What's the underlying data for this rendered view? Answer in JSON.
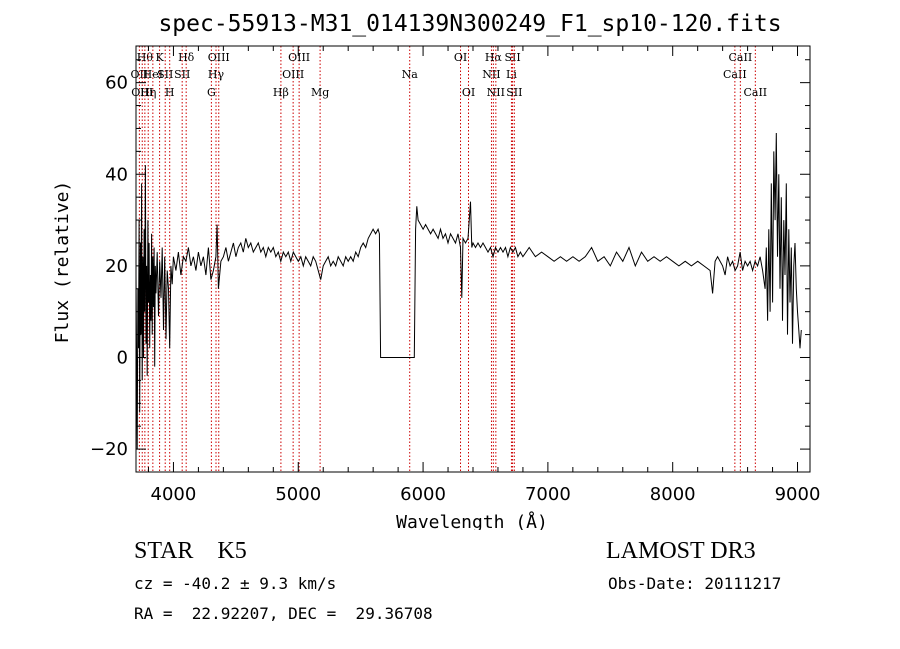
{
  "chart_data": {
    "type": "line",
    "title": "spec-55913-M31_014139N300249_F1_sp10-120.fits",
    "xlabel": "Wavelength (Å)",
    "ylabel": "Flux (relative)",
    "xlim": [
      3700,
      9100
    ],
    "ylim": [
      -25,
      68
    ],
    "x_ticks": [
      4000,
      5000,
      6000,
      7000,
      8000,
      9000
    ],
    "y_ticks": [
      -20,
      0,
      20,
      40,
      60
    ],
    "line_color": "#000000",
    "marker_color": "#cc0000",
    "spectrum": {
      "name": "",
      "points": [
        [
          3700,
          18
        ],
        [
          3710,
          -20
        ],
        [
          3715,
          15
        ],
        [
          3720,
          2
        ],
        [
          3725,
          30
        ],
        [
          3730,
          -12
        ],
        [
          3735,
          25
        ],
        [
          3740,
          5
        ],
        [
          3745,
          38
        ],
        [
          3750,
          -5
        ],
        [
          3755,
          22
        ],
        [
          3760,
          0
        ],
        [
          3765,
          28
        ],
        [
          3770,
          10
        ],
        [
          3775,
          42
        ],
        [
          3780,
          3
        ],
        [
          3785,
          20
        ],
        [
          3790,
          -4
        ],
        [
          3795,
          30
        ],
        [
          3800,
          12
        ],
        [
          3805,
          25
        ],
        [
          3810,
          2
        ],
        [
          3815,
          18
        ],
        [
          3820,
          8
        ],
        [
          3825,
          27
        ],
        [
          3830,
          5
        ],
        [
          3835,
          22
        ],
        [
          3840,
          11
        ],
        [
          3845,
          24
        ],
        [
          3850,
          -2
        ],
        [
          3855,
          20
        ],
        [
          3860,
          14
        ],
        [
          3870,
          23
        ],
        [
          3880,
          9
        ],
        [
          3890,
          21
        ],
        [
          3900,
          13
        ],
        [
          3910,
          24
        ],
        [
          3920,
          6
        ],
        [
          3930,
          22
        ],
        [
          3940,
          4
        ],
        [
          3950,
          19
        ],
        [
          3960,
          15
        ],
        [
          3970,
          2
        ],
        [
          3980,
          20
        ],
        [
          3990,
          16
        ],
        [
          4000,
          22
        ],
        [
          4020,
          19
        ],
        [
          4040,
          23
        ],
        [
          4060,
          18
        ],
        [
          4080,
          22
        ],
        [
          4100,
          21
        ],
        [
          4120,
          24
        ],
        [
          4140,
          20
        ],
        [
          4160,
          22
        ],
        [
          4180,
          19
        ],
        [
          4200,
          23
        ],
        [
          4220,
          20
        ],
        [
          4240,
          22
        ],
        [
          4260,
          18
        ],
        [
          4280,
          24
        ],
        [
          4300,
          17
        ],
        [
          4320,
          19
        ],
        [
          4340,
          22
        ],
        [
          4350,
          29
        ],
        [
          4360,
          15
        ],
        [
          4380,
          21
        ],
        [
          4400,
          22
        ],
        [
          4420,
          24
        ],
        [
          4440,
          21
        ],
        [
          4460,
          23
        ],
        [
          4480,
          25
        ],
        [
          4500,
          22
        ],
        [
          4520,
          24
        ],
        [
          4540,
          25
        ],
        [
          4560,
          23
        ],
        [
          4580,
          26
        ],
        [
          4600,
          24
        ],
        [
          4620,
          25
        ],
        [
          4640,
          23
        ],
        [
          4660,
          24
        ],
        [
          4680,
          25
        ],
        [
          4700,
          23
        ],
        [
          4720,
          24
        ],
        [
          4740,
          22
        ],
        [
          4760,
          24
        ],
        [
          4780,
          23
        ],
        [
          4800,
          24
        ],
        [
          4820,
          22
        ],
        [
          4840,
          23
        ],
        [
          4860,
          21
        ],
        [
          4880,
          23
        ],
        [
          4900,
          22
        ],
        [
          4920,
          23
        ],
        [
          4940,
          21
        ],
        [
          4960,
          23
        ],
        [
          4980,
          22
        ],
        [
          5000,
          21
        ],
        [
          5020,
          22
        ],
        [
          5040,
          20
        ],
        [
          5060,
          22
        ],
        [
          5080,
          21
        ],
        [
          5100,
          20
        ],
        [
          5120,
          22
        ],
        [
          5140,
          21
        ],
        [
          5160,
          19
        ],
        [
          5180,
          17
        ],
        [
          5200,
          20
        ],
        [
          5220,
          21
        ],
        [
          5240,
          22
        ],
        [
          5260,
          20
        ],
        [
          5280,
          21
        ],
        [
          5300,
          20
        ],
        [
          5320,
          22
        ],
        [
          5340,
          21
        ],
        [
          5360,
          20
        ],
        [
          5380,
          22
        ],
        [
          5400,
          21
        ],
        [
          5420,
          22
        ],
        [
          5440,
          21
        ],
        [
          5460,
          23
        ],
        [
          5480,
          22
        ],
        [
          5500,
          24
        ],
        [
          5520,
          25
        ],
        [
          5540,
          24
        ],
        [
          5560,
          26
        ],
        [
          5580,
          27
        ],
        [
          5600,
          28
        ],
        [
          5620,
          27
        ],
        [
          5640,
          28
        ],
        [
          5650,
          27
        ],
        [
          5660,
          0
        ],
        [
          5700,
          0
        ],
        [
          5800,
          0
        ],
        [
          5900,
          0
        ],
        [
          5930,
          0
        ],
        [
          5940,
          28
        ],
        [
          5950,
          33
        ],
        [
          5960,
          30
        ],
        [
          5980,
          29
        ],
        [
          6000,
          28
        ],
        [
          6020,
          29
        ],
        [
          6040,
          28
        ],
        [
          6060,
          27
        ],
        [
          6080,
          28
        ],
        [
          6100,
          27
        ],
        [
          6120,
          26
        ],
        [
          6140,
          28
        ],
        [
          6160,
          26
        ],
        [
          6180,
          27
        ],
        [
          6200,
          25
        ],
        [
          6220,
          27
        ],
        [
          6240,
          26
        ],
        [
          6260,
          25
        ],
        [
          6280,
          27
        ],
        [
          6300,
          24
        ],
        [
          6310,
          13
        ],
        [
          6320,
          26
        ],
        [
          6340,
          25
        ],
        [
          6360,
          26
        ],
        [
          6380,
          34
        ],
        [
          6390,
          24
        ],
        [
          6400,
          25
        ],
        [
          6420,
          24
        ],
        [
          6440,
          25
        ],
        [
          6460,
          24
        ],
        [
          6480,
          25
        ],
        [
          6500,
          24
        ],
        [
          6520,
          23
        ],
        [
          6540,
          24
        ],
        [
          6560,
          22
        ],
        [
          6580,
          24
        ],
        [
          6600,
          23
        ],
        [
          6620,
          24
        ],
        [
          6640,
          23
        ],
        [
          6660,
          24
        ],
        [
          6680,
          22
        ],
        [
          6700,
          24
        ],
        [
          6720,
          23
        ],
        [
          6740,
          24
        ],
        [
          6760,
          22
        ],
        [
          6780,
          23
        ],
        [
          6800,
          22
        ],
        [
          6850,
          24
        ],
        [
          6900,
          22
        ],
        [
          6950,
          23
        ],
        [
          7000,
          22
        ],
        [
          7050,
          21
        ],
        [
          7100,
          22
        ],
        [
          7150,
          21
        ],
        [
          7200,
          22
        ],
        [
          7250,
          21
        ],
        [
          7300,
          22
        ],
        [
          7350,
          24
        ],
        [
          7400,
          21
        ],
        [
          7450,
          22
        ],
        [
          7500,
          20
        ],
        [
          7550,
          23
        ],
        [
          7600,
          21
        ],
        [
          7650,
          24
        ],
        [
          7700,
          20
        ],
        [
          7750,
          23
        ],
        [
          7800,
          21
        ],
        [
          7850,
          22
        ],
        [
          7900,
          21
        ],
        [
          7950,
          22
        ],
        [
          8000,
          21
        ],
        [
          8050,
          20
        ],
        [
          8100,
          21
        ],
        [
          8150,
          20
        ],
        [
          8200,
          21
        ],
        [
          8250,
          20
        ],
        [
          8300,
          19
        ],
        [
          8320,
          14
        ],
        [
          8340,
          21
        ],
        [
          8360,
          22
        ],
        [
          8400,
          20
        ],
        [
          8420,
          18
        ],
        [
          8440,
          22
        ],
        [
          8460,
          20
        ],
        [
          8480,
          21
        ],
        [
          8500,
          19
        ],
        [
          8520,
          20
        ],
        [
          8540,
          23
        ],
        [
          8560,
          19
        ],
        [
          8580,
          21
        ],
        [
          8600,
          20
        ],
        [
          8620,
          21
        ],
        [
          8640,
          19
        ],
        [
          8660,
          21
        ],
        [
          8680,
          20
        ],
        [
          8700,
          22
        ],
        [
          8720,
          19
        ],
        [
          8740,
          15
        ],
        [
          8750,
          24
        ],
        [
          8760,
          8
        ],
        [
          8770,
          28
        ],
        [
          8780,
          10
        ],
        [
          8790,
          38
        ],
        [
          8800,
          12
        ],
        [
          8810,
          45
        ],
        [
          8820,
          30
        ],
        [
          8830,
          49
        ],
        [
          8840,
          22
        ],
        [
          8850,
          40
        ],
        [
          8860,
          15
        ],
        [
          8870,
          35
        ],
        [
          8880,
          8
        ],
        [
          8890,
          30
        ],
        [
          8900,
          18
        ],
        [
          8910,
          38
        ],
        [
          8920,
          5
        ],
        [
          8930,
          28
        ],
        [
          8940,
          12
        ],
        [
          8950,
          24
        ],
        [
          8960,
          3
        ],
        [
          8970,
          20
        ],
        [
          8980,
          25
        ],
        [
          8990,
          15
        ],
        [
          9000,
          10
        ],
        [
          9010,
          6
        ],
        [
          9020,
          2
        ],
        [
          9030,
          6
        ]
      ]
    },
    "line_markers": [
      {
        "wave": 3727,
        "label": "OII",
        "row": 2
      },
      {
        "wave": 3750,
        "label": "OIII",
        "row": 3
      },
      {
        "wave": 3771,
        "label": "Hθ",
        "row": 1
      },
      {
        "wave": 3798,
        "label": "Hη",
        "row": 3
      },
      {
        "wave": 3835,
        "label": "HeI",
        "row": 2
      },
      {
        "wave": 3889,
        "label": "K",
        "row": 1
      },
      {
        "wave": 3934,
        "label": "SII",
        "row": 2
      },
      {
        "wave": 3970,
        "label": "H",
        "row": 3
      },
      {
        "wave": 4102,
        "label": "Hδ",
        "row": 1
      },
      {
        "wave": 4070,
        "label": "SII",
        "row": 2
      },
      {
        "wave": 4304,
        "label": "G",
        "row": 3
      },
      {
        "wave": 4341,
        "label": "Hγ",
        "row": 2
      },
      {
        "wave": 4363,
        "label": "OIII",
        "row": 1
      },
      {
        "wave": 4861,
        "label": "Hβ",
        "row": 3
      },
      {
        "wave": 4959,
        "label": "OIII",
        "row": 2
      },
      {
        "wave": 5007,
        "label": "OIII",
        "row": 1
      },
      {
        "wave": 5175,
        "label": "Mg",
        "row": 3
      },
      {
        "wave": 5893,
        "label": "Na",
        "row": 2
      },
      {
        "wave": 6300,
        "label": "OI",
        "row": 1
      },
      {
        "wave": 6364,
        "label": "OI",
        "row": 3
      },
      {
        "wave": 6548,
        "label": "NII",
        "row": 2
      },
      {
        "wave": 6563,
        "label": "Hα",
        "row": 1
      },
      {
        "wave": 6583,
        "label": "NII",
        "row": 3
      },
      {
        "wave": 6708,
        "label": "Li",
        "row": 2
      },
      {
        "wave": 6717,
        "label": "SII",
        "row": 1
      },
      {
        "wave": 6731,
        "label": "SII",
        "row": 3
      },
      {
        "wave": 8498,
        "label": "CaII",
        "row": 2
      },
      {
        "wave": 8542,
        "label": "CaII",
        "row": 1
      },
      {
        "wave": 8662,
        "label": "CaII",
        "row": 3
      }
    ]
  },
  "footer": {
    "classification": "STAR    K5",
    "survey": "LAMOST DR3",
    "redshift": "cz = -40.2 ± 9.3 km/s",
    "obs_date": "Obs-Date: 20111217",
    "coords": "RA =  22.92207, DEC =  29.36708"
  }
}
